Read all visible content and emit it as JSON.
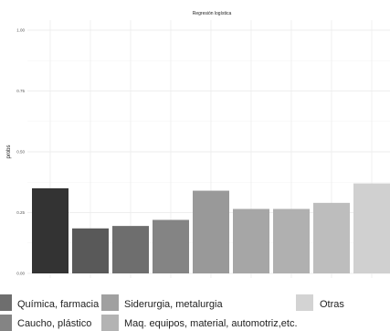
{
  "chart_data": {
    "type": "bar",
    "title": "Regresión logística",
    "xlabel": "",
    "ylabel": "probs",
    "ylim": [
      0,
      1
    ],
    "yticks": [
      "0.00",
      "0.25",
      "0.50",
      "0.75",
      "1.00"
    ],
    "grid": true,
    "legend_position": "bottom",
    "series": [
      {
        "value": 0.35,
        "color": "#333333"
      },
      {
        "value": 0.185,
        "color": "#595959"
      },
      {
        "value": 0.195,
        "color": "#6e6e6e"
      },
      {
        "value": 0.22,
        "color": "#848484"
      },
      {
        "value": 0.34,
        "color": "#999999"
      },
      {
        "value": 0.265,
        "color": "#a6a6a6"
      },
      {
        "value": 0.265,
        "color": "#b0b0b0"
      },
      {
        "value": 0.29,
        "color": "#bdbdbd"
      },
      {
        "value": 0.37,
        "color": "#d0d0d0"
      }
    ],
    "legend": [
      {
        "label": "Química, farmacia",
        "color": "#6e6e6e"
      },
      {
        "label": "Siderurgia, metalurgia",
        "color": "#a0a0a0"
      },
      {
        "label": "Otras",
        "color": "#d3d3d3"
      },
      {
        "label": "Caucho, plástico",
        "color": "#848484"
      },
      {
        "label": "Maq. equipos, material, automotriz,etc.",
        "color": "#b3b3b3"
      }
    ]
  }
}
